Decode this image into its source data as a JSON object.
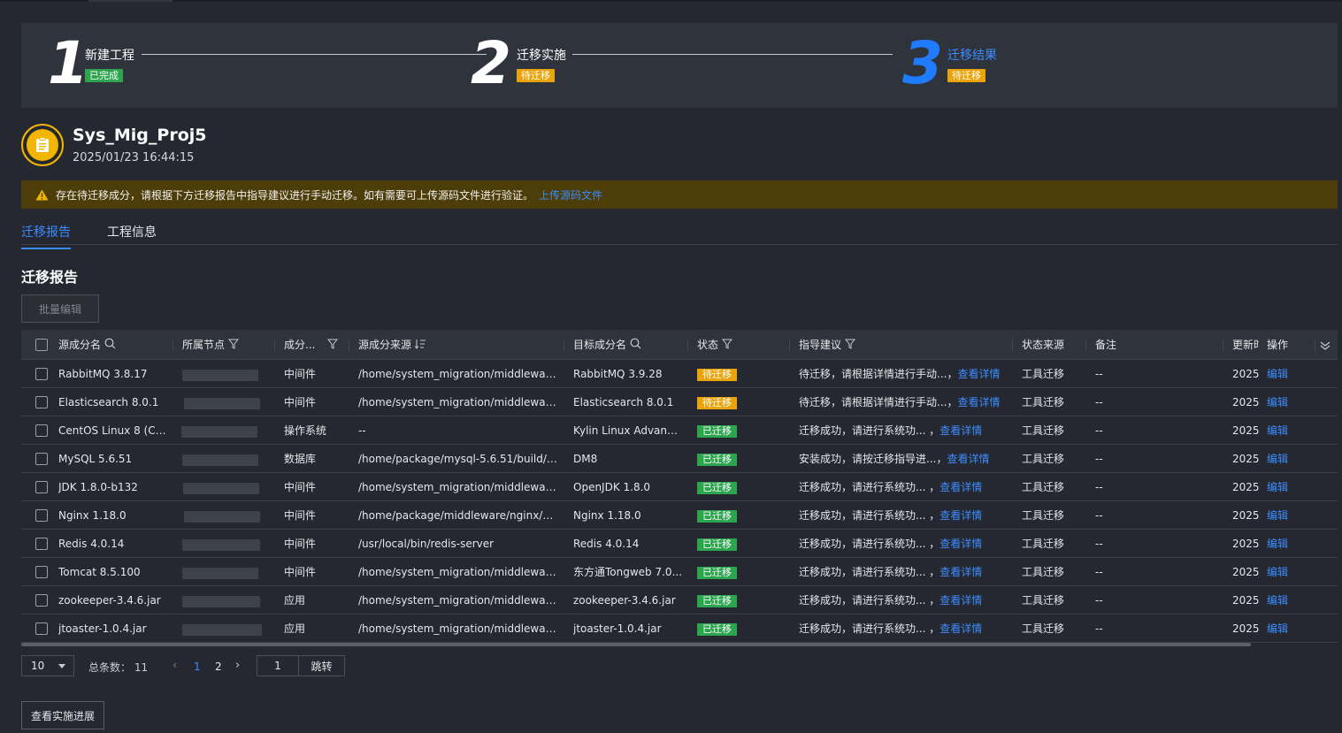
{
  "steps": [
    {
      "number": "1",
      "title": "新建工程",
      "badge": "已完成",
      "state": "done"
    },
    {
      "number": "2",
      "title": "迁移实施",
      "badge": "待迁移",
      "state": "pending"
    },
    {
      "number": "3",
      "title": "迁移结果",
      "badge": "待迁移",
      "state": "current"
    }
  ],
  "project": {
    "name": "Sys_Mig_Proj5",
    "time": "2025/01/23 16:44:15",
    "icon": "clipboard-icon"
  },
  "warning": {
    "text": "存在待迁移成分，请根据下方迁移报告中指导建议进行手动迁移。如有需要可上传源码文件进行验证。",
    "link": "上传源码文件"
  },
  "tabs": [
    "迁移报告",
    "工程信息"
  ],
  "section_title": "迁移报告",
  "batch_edit": "批量编辑",
  "table": {
    "headers": {
      "source_name": "源成分名",
      "node": "所属节点",
      "type": "成分...",
      "source_path": "源成分来源",
      "target_name": "目标成分名",
      "status": "状态",
      "advice": "指导建议",
      "status_source": "状态来源",
      "remark": "备注",
      "updated": "更新时",
      "action": "操作"
    },
    "rows": [
      {
        "source_name": "RabbitMQ 3.8.17",
        "type": "中间件",
        "source_path": "/home/system_migration/middleware/r...",
        "target_name": "RabbitMQ 3.9.28",
        "status": "待迁移",
        "status_color": "#e9a30b",
        "advice": "待迁移，请根据详情进行手动...，",
        "advice_link": "查看详情",
        "status_source": "工具迁移",
        "remark": "--",
        "updated": "2025,",
        "action": "编辑"
      },
      {
        "source_name": "Elasticsearch 8.0.1",
        "type": "中间件",
        "source_path": "/home/system_migration/middleware/...",
        "target_name": "Elasticsearch 8.0.1",
        "status": "待迁移",
        "status_color": "#e9a30b",
        "advice": "待迁移，请根据详情进行手动...，",
        "advice_link": "查看详情",
        "status_source": "工具迁移",
        "remark": "--",
        "updated": "2025,",
        "action": "编辑"
      },
      {
        "source_name": "CentOS Linux 8 (Co...",
        "type": "操作系统",
        "source_path": "--",
        "target_name": "Kylin Linux Advanc...",
        "status": "已迁移",
        "status_color": "#2da44e",
        "advice": "迁移成功，请进行系统功... ，",
        "advice_link": "查看详情",
        "status_source": "工具迁移",
        "remark": "--",
        "updated": "2025,",
        "action": "编辑"
      },
      {
        "source_name": "MySQL 5.6.51",
        "type": "数据库",
        "source_path": "/home/package/mysql-5.6.51/build/sq...",
        "target_name": "DM8",
        "status": "已迁移",
        "status_color": "#2da44e",
        "advice": "安装成功，请按迁移指导进...，",
        "advice_link": "查看详情",
        "status_source": "工具迁移",
        "remark": "--",
        "updated": "2025,",
        "action": "编辑"
      },
      {
        "source_name": "JDK 1.8.0-b132",
        "type": "中间件",
        "source_path": "/home/system_migration/middleware/j...",
        "target_name": "OpenJDK 1.8.0",
        "status": "已迁移",
        "status_color": "#2da44e",
        "advice": "迁移成功，请进行系统功... ，",
        "advice_link": "查看详情",
        "status_source": "工具迁移",
        "remark": "--",
        "updated": "2025,",
        "action": "编辑"
      },
      {
        "source_name": "Nginx 1.18.0",
        "type": "中间件",
        "source_path": "/home/package/middleware/nginx/ngi...",
        "target_name": "Nginx 1.18.0",
        "status": "已迁移",
        "status_color": "#2da44e",
        "advice": "迁移成功，请进行系统功... ，",
        "advice_link": "查看详情",
        "status_source": "工具迁移",
        "remark": "--",
        "updated": "2025,",
        "action": "编辑"
      },
      {
        "source_name": "Redis 4.0.14",
        "type": "中间件",
        "source_path": "/usr/local/bin/redis-server",
        "target_name": "Redis 4.0.14",
        "status": "已迁移",
        "status_color": "#2da44e",
        "advice": "迁移成功，请进行系统功... ，",
        "advice_link": "查看详情",
        "status_source": "工具迁移",
        "remark": "--",
        "updated": "2025,",
        "action": "编辑"
      },
      {
        "source_name": "Tomcat 8.5.100",
        "type": "中间件",
        "source_path": "/home/system_migration/middleware/...",
        "target_name": "东方通Tongweb 7.0...",
        "status": "已迁移",
        "status_color": "#2da44e",
        "advice": "迁移成功，请进行系统功... ，",
        "advice_link": "查看详情",
        "status_source": "工具迁移",
        "remark": "--",
        "updated": "2025,",
        "action": "编辑"
      },
      {
        "source_name": "zookeeper-3.4.6.jar",
        "type": "应用",
        "source_path": "/home/system_migration/middleware/...",
        "target_name": "zookeeper-3.4.6.jar",
        "status": "已迁移",
        "status_color": "#2da44e",
        "advice": "迁移成功，请进行系统功... ，",
        "advice_link": "查看详情",
        "status_source": "工具迁移",
        "remark": "--",
        "updated": "2025,",
        "action": "编辑"
      },
      {
        "source_name": "jtoaster-1.0.4.jar",
        "type": "应用",
        "source_path": "/home/system_migration/middleware/...",
        "target_name": "jtoaster-1.0.4.jar",
        "status": "已迁移",
        "status_color": "#2da44e",
        "advice": "迁移成功，请进行系统功... ，",
        "advice_link": "查看详情",
        "status_source": "工具迁移",
        "remark": "--",
        "updated": "2025,",
        "action": "编辑"
      }
    ]
  },
  "pagination": {
    "page_size": "10",
    "total_label": "总条数：",
    "total": "11",
    "pages": [
      "1",
      "2"
    ],
    "current_page": "1",
    "jump_input": "1",
    "jump_label": "跳转"
  },
  "progress_button": "查看实施进展",
  "colors": {
    "accent": "#3b8cff",
    "success": "#2da44e",
    "pending": "#e9a30b",
    "warning_bg": "#4d3d09",
    "background": "#252830"
  }
}
